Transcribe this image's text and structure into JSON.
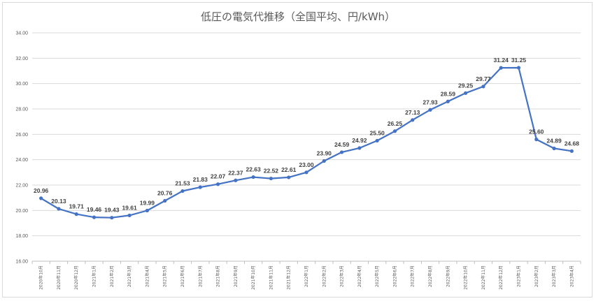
{
  "chart_data": {
    "type": "line",
    "title": "低圧の電気代推移（全国平均、円/kWh）",
    "xlabel": "",
    "ylabel": "",
    "ylim": [
      16,
      34
    ],
    "yticks": [
      "16.00",
      "18.00",
      "20.00",
      "22.00",
      "24.00",
      "26.00",
      "28.00",
      "30.00",
      "32.00",
      "34.00"
    ],
    "grid": true,
    "legend": "none",
    "line_color": "#4472c4",
    "categories": [
      "2020年10月",
      "2020年11月",
      "2020年12月",
      "2021年1月",
      "2021年2月",
      "2021年3月",
      "2021年4月",
      "2021年5月",
      "2021年6月",
      "2021年7月",
      "2021年8月",
      "2021年9月",
      "2021年10月",
      "2021年11月",
      "2021年12月",
      "2022年1月",
      "2022年2月",
      "2022年3月",
      "2022年4月",
      "2022年5月",
      "2022年6月",
      "2022年7月",
      "2022年8月",
      "2022年9月",
      "2022年10月",
      "2022年11月",
      "2022年12月",
      "2023年1月",
      "2023年2月",
      "2023年3月",
      "2023年4月"
    ],
    "series": [
      {
        "values": [
          20.96,
          20.13,
          19.71,
          19.46,
          19.43,
          19.61,
          19.99,
          20.76,
          21.53,
          21.83,
          22.07,
          22.37,
          22.63,
          22.52,
          22.61,
          23.0,
          23.9,
          24.59,
          24.92,
          25.5,
          26.25,
          27.13,
          27.93,
          28.59,
          29.25,
          29.77,
          31.24,
          31.25,
          25.6,
          24.89,
          24.68
        ],
        "labels": [
          "20.96",
          "20.13",
          "19.71",
          "19.46",
          "19.43",
          "19.61",
          "19.99",
          "20.76",
          "21.53",
          "21.83",
          "22.07",
          "22.37",
          "22.63",
          "22.52",
          "22.61",
          "23.00",
          "23.90",
          "24.59",
          "24.92",
          "25.50",
          "26.25",
          "27.13",
          "27.93",
          "28.59",
          "29.25",
          "29.77",
          "31.24",
          "31.25",
          "25.60",
          "24.89",
          "24.68"
        ]
      }
    ]
  }
}
